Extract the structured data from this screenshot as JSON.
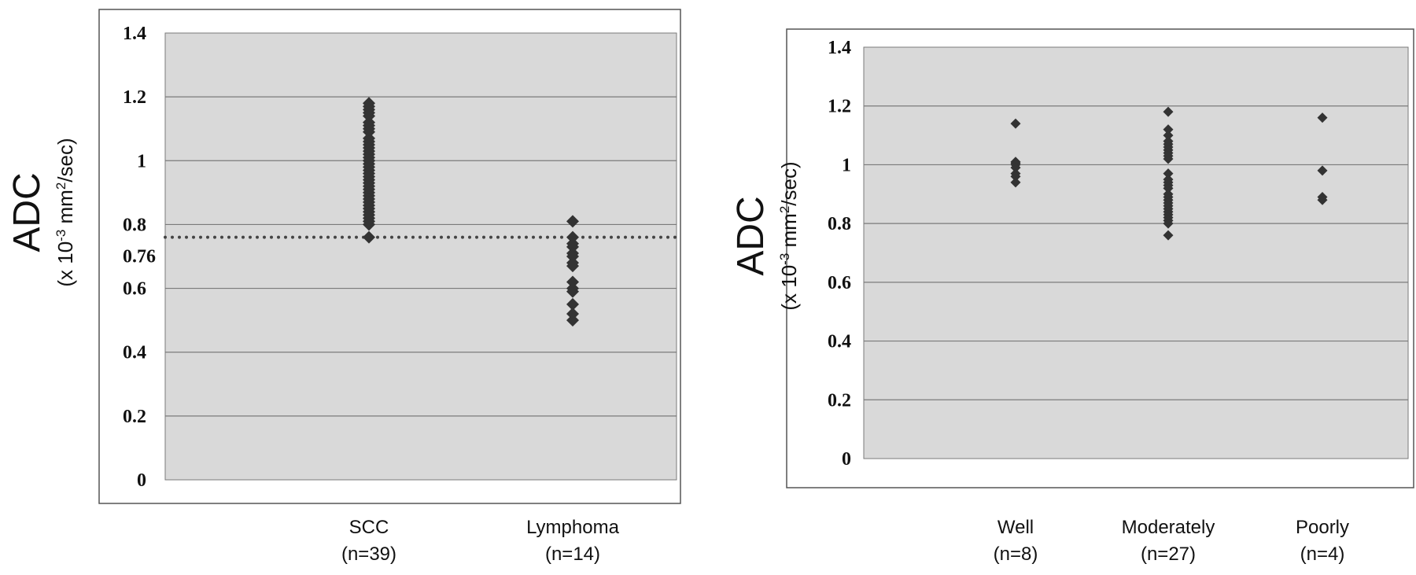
{
  "chart_data": [
    {
      "type": "scatter",
      "title": "",
      "ylabel": "ADC",
      "ylabel_units": [
        "(x 10",
        "-3",
        " mm",
        "2",
        "/sec)"
      ],
      "ylim": [
        0,
        1.4
      ],
      "yticks": [
        "0",
        "0.2",
        "0.4",
        "0.6",
        "0.8",
        "1",
        "1.2",
        "1.4"
      ],
      "grid": true,
      "threshold": {
        "value": 0.76,
        "label": "0.76",
        "style": "dotted"
      },
      "categories": [
        {
          "name": "SCC",
          "n": "(n=39)",
          "values": [
            1.18,
            1.17,
            1.16,
            1.15,
            1.14,
            1.12,
            1.11,
            1.1,
            1.09,
            1.07,
            1.06,
            1.05,
            1.04,
            1.03,
            1.02,
            1.01,
            1.0,
            1.0,
            0.99,
            0.98,
            0.97,
            0.96,
            0.95,
            0.94,
            0.93,
            0.92,
            0.91,
            0.9,
            0.89,
            0.88,
            0.87,
            0.86,
            0.85,
            0.84,
            0.83,
            0.82,
            0.81,
            0.8,
            0.76
          ]
        },
        {
          "name": "Lymphoma",
          "n": "(n=14)",
          "values": [
            0.81,
            0.76,
            0.74,
            0.73,
            0.71,
            0.7,
            0.68,
            0.67,
            0.62,
            0.6,
            0.59,
            0.55,
            0.52,
            0.5
          ]
        }
      ]
    },
    {
      "type": "scatter",
      "title": "",
      "ylabel": "ADC",
      "ylabel_units": [
        "(x 10",
        "-3",
        " mm",
        "2",
        "/sec)"
      ],
      "ylim": [
        0,
        1.4
      ],
      "yticks": [
        "0",
        "0.2",
        "0.4",
        "0.6",
        "0.8",
        "1",
        "1.2",
        "1.4"
      ],
      "grid": true,
      "categories": [
        {
          "name": "Well",
          "n": "(n=8)",
          "values": [
            1.14,
            1.01,
            1.005,
            1.0,
            0.99,
            0.97,
            0.96,
            0.94
          ]
        },
        {
          "name": "Moderately",
          "n": "(n=27)",
          "values": [
            1.18,
            1.12,
            1.1,
            1.07,
            1.06,
            1.05,
            1.04,
            1.03,
            1.02,
            0.97,
            0.94,
            0.93,
            0.92,
            0.89,
            0.88,
            0.87,
            0.85,
            0.84,
            0.83,
            0.82,
            0.81,
            0.8,
            0.76,
            0.86,
            0.9,
            1.08,
            0.95
          ]
        },
        {
          "name": "Poorly",
          "n": "(n=4)",
          "values": [
            1.16,
            0.98,
            0.89,
            0.88
          ]
        }
      ]
    }
  ],
  "colors": {
    "plot_bg": "#d9d9d9",
    "grid": "#7a7a7a",
    "marker": "#333333",
    "frame": "#555555"
  }
}
